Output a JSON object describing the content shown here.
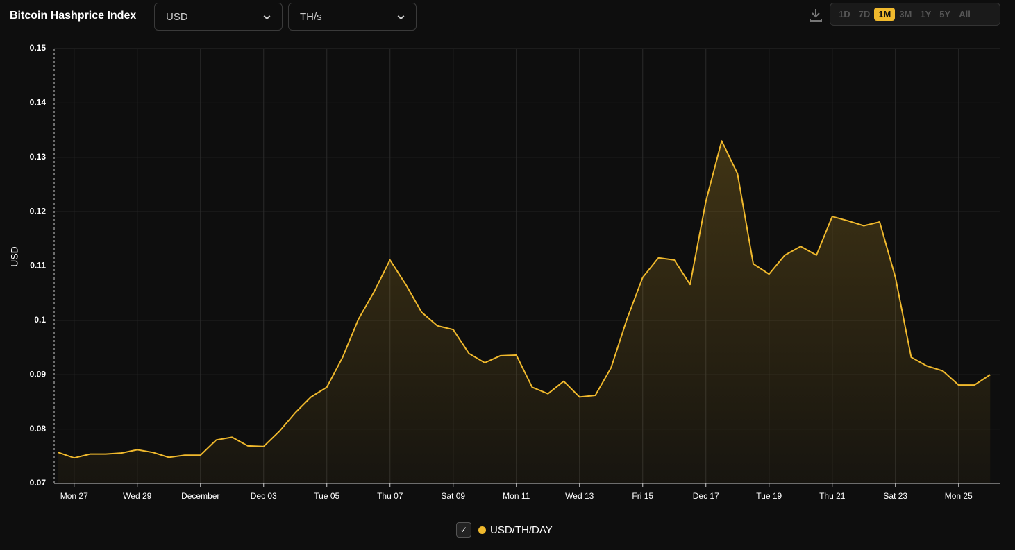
{
  "header": {
    "title": "Bitcoin Hashprice Index",
    "currency": "USD",
    "unit": "TH/s",
    "ranges": [
      "1D",
      "7D",
      "1M",
      "3M",
      "1Y",
      "5Y",
      "All"
    ],
    "active_range": "1M"
  },
  "chart_data": {
    "type": "area",
    "ylabel": "USD",
    "categories": [
      null,
      "Mon 27",
      null,
      null,
      null,
      "Wed 29",
      null,
      null,
      null,
      "December",
      null,
      null,
      null,
      "Dec 03",
      null,
      null,
      null,
      "Tue 05",
      null,
      null,
      null,
      "Thu 07",
      null,
      null,
      null,
      "Sat 09",
      null,
      null,
      null,
      "Mon 11",
      null,
      null,
      null,
      "Wed 13",
      null,
      null,
      null,
      "Fri 15",
      null,
      null,
      null,
      "Dec 17",
      null,
      null,
      null,
      "Tue 19",
      null,
      null,
      null,
      "Thu 21",
      null,
      null,
      null,
      "Sat 23",
      null,
      null,
      null,
      "Mon 25",
      null,
      null
    ],
    "series": [
      {
        "name": "USD/TH/DAY",
        "color": "#f0b92d",
        "values": [
          0.0757,
          0.0747,
          0.0754,
          0.0754,
          0.0756,
          0.0762,
          0.0757,
          0.0748,
          0.0752,
          0.0752,
          0.078,
          0.0785,
          0.0769,
          0.0768,
          0.0796,
          0.083,
          0.0859,
          0.0877,
          0.0932,
          0.1002,
          0.1053,
          0.1111,
          0.1066,
          0.1015,
          0.099,
          0.0983,
          0.0939,
          0.0922,
          0.0935,
          0.0936,
          0.0877,
          0.0865,
          0.0888,
          0.0859,
          0.0862,
          0.0913,
          0.1002,
          0.1079,
          0.1115,
          0.1111,
          0.1066,
          0.1219,
          0.133,
          0.127,
          0.1104,
          0.1085,
          0.112,
          0.1136,
          0.112,
          0.1191,
          0.1183,
          0.1174,
          0.1181,
          0.1079,
          0.0932,
          0.0916,
          0.0907,
          0.0881,
          0.0881,
          0.09
        ]
      }
    ],
    "ylim": [
      0.07,
      0.15
    ],
    "yticks": [
      0.07,
      0.08,
      0.09,
      0.1,
      0.11,
      0.12,
      0.13,
      0.14,
      0.15
    ],
    "grid": true
  }
}
